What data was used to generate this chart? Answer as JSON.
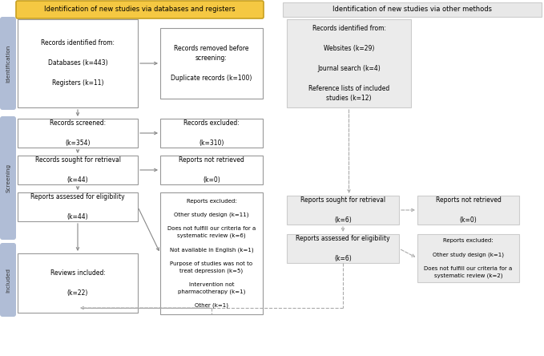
{
  "header_left": "Identification of new studies via databases and registers",
  "header_right": "Identification of new studies via other methods",
  "boxes": {
    "records_identified": "Records identified from:\n\nDatabases (k=443)\n\nRegisters (k=11)",
    "records_removed": "Records removed before\nscreening:\n\nDuplicate records (k=100)",
    "records_identified_right": "Records identified from:\n\nWebsites (k=29)\n\nJournal search (k=4)\n\nReference lists of included\nstudies (k=12)",
    "records_screened": "Records screened:\n\n(k=354)",
    "records_excluded": "Records excluded:\n\n(k=310)",
    "records_retrieval": "Records sought for retrieval\n\n(k=44)",
    "reports_not_retrieved": "Reports not retrieved\n\n(k=0)",
    "reports_assessed": "Reports assessed for eligibility\n\n(k=44)",
    "reports_excluded": "Reports excluded:\n\nOther study design (k=11)\n\nDoes not fulfill our criteria for a\nsystematic review (k=6)\n\nNot available in English (k=1)\n\nPurpose of studies was not to\ntreat depression (k=5)\n\nIntervention not\npharmacotherapy (k=1)\n\nOther (k=1)",
    "reviews_included": "Reviews included:\n\n(k=22)",
    "reports_retrieval_right": "Reports sought for retrieval\n\n(k=6)",
    "reports_not_retrieved_right": "Reports not retrieved\n\n(k=0)",
    "reports_assessed_right": "Reports assessed for eligibility\n\n(k=6)",
    "reports_excluded_right": "Reports excluded:\n\nOther study design (k=1)\n\nDoes not fulfill our criteria for a\nsystematic review (k=2)"
  },
  "sidebar_identification": "Identification",
  "sidebar_screening": "Screening",
  "sidebar_included": "Included",
  "sidebar_color": "#AББССС",
  "yellow_bg": "#F5C842",
  "yellow_border": "#C8A020",
  "gray_header_bg": "#E8E8E8",
  "gray_header_border": "#CCCCCC",
  "white_box_border": "#999999",
  "gray_box_bg": "#EBEBEB",
  "gray_box_border": "#CCCCCC",
  "arrow_color": "#888888",
  "dashed_arrow_color": "#AAAAAA",
  "sidebar_blue": "#B0BDD6"
}
